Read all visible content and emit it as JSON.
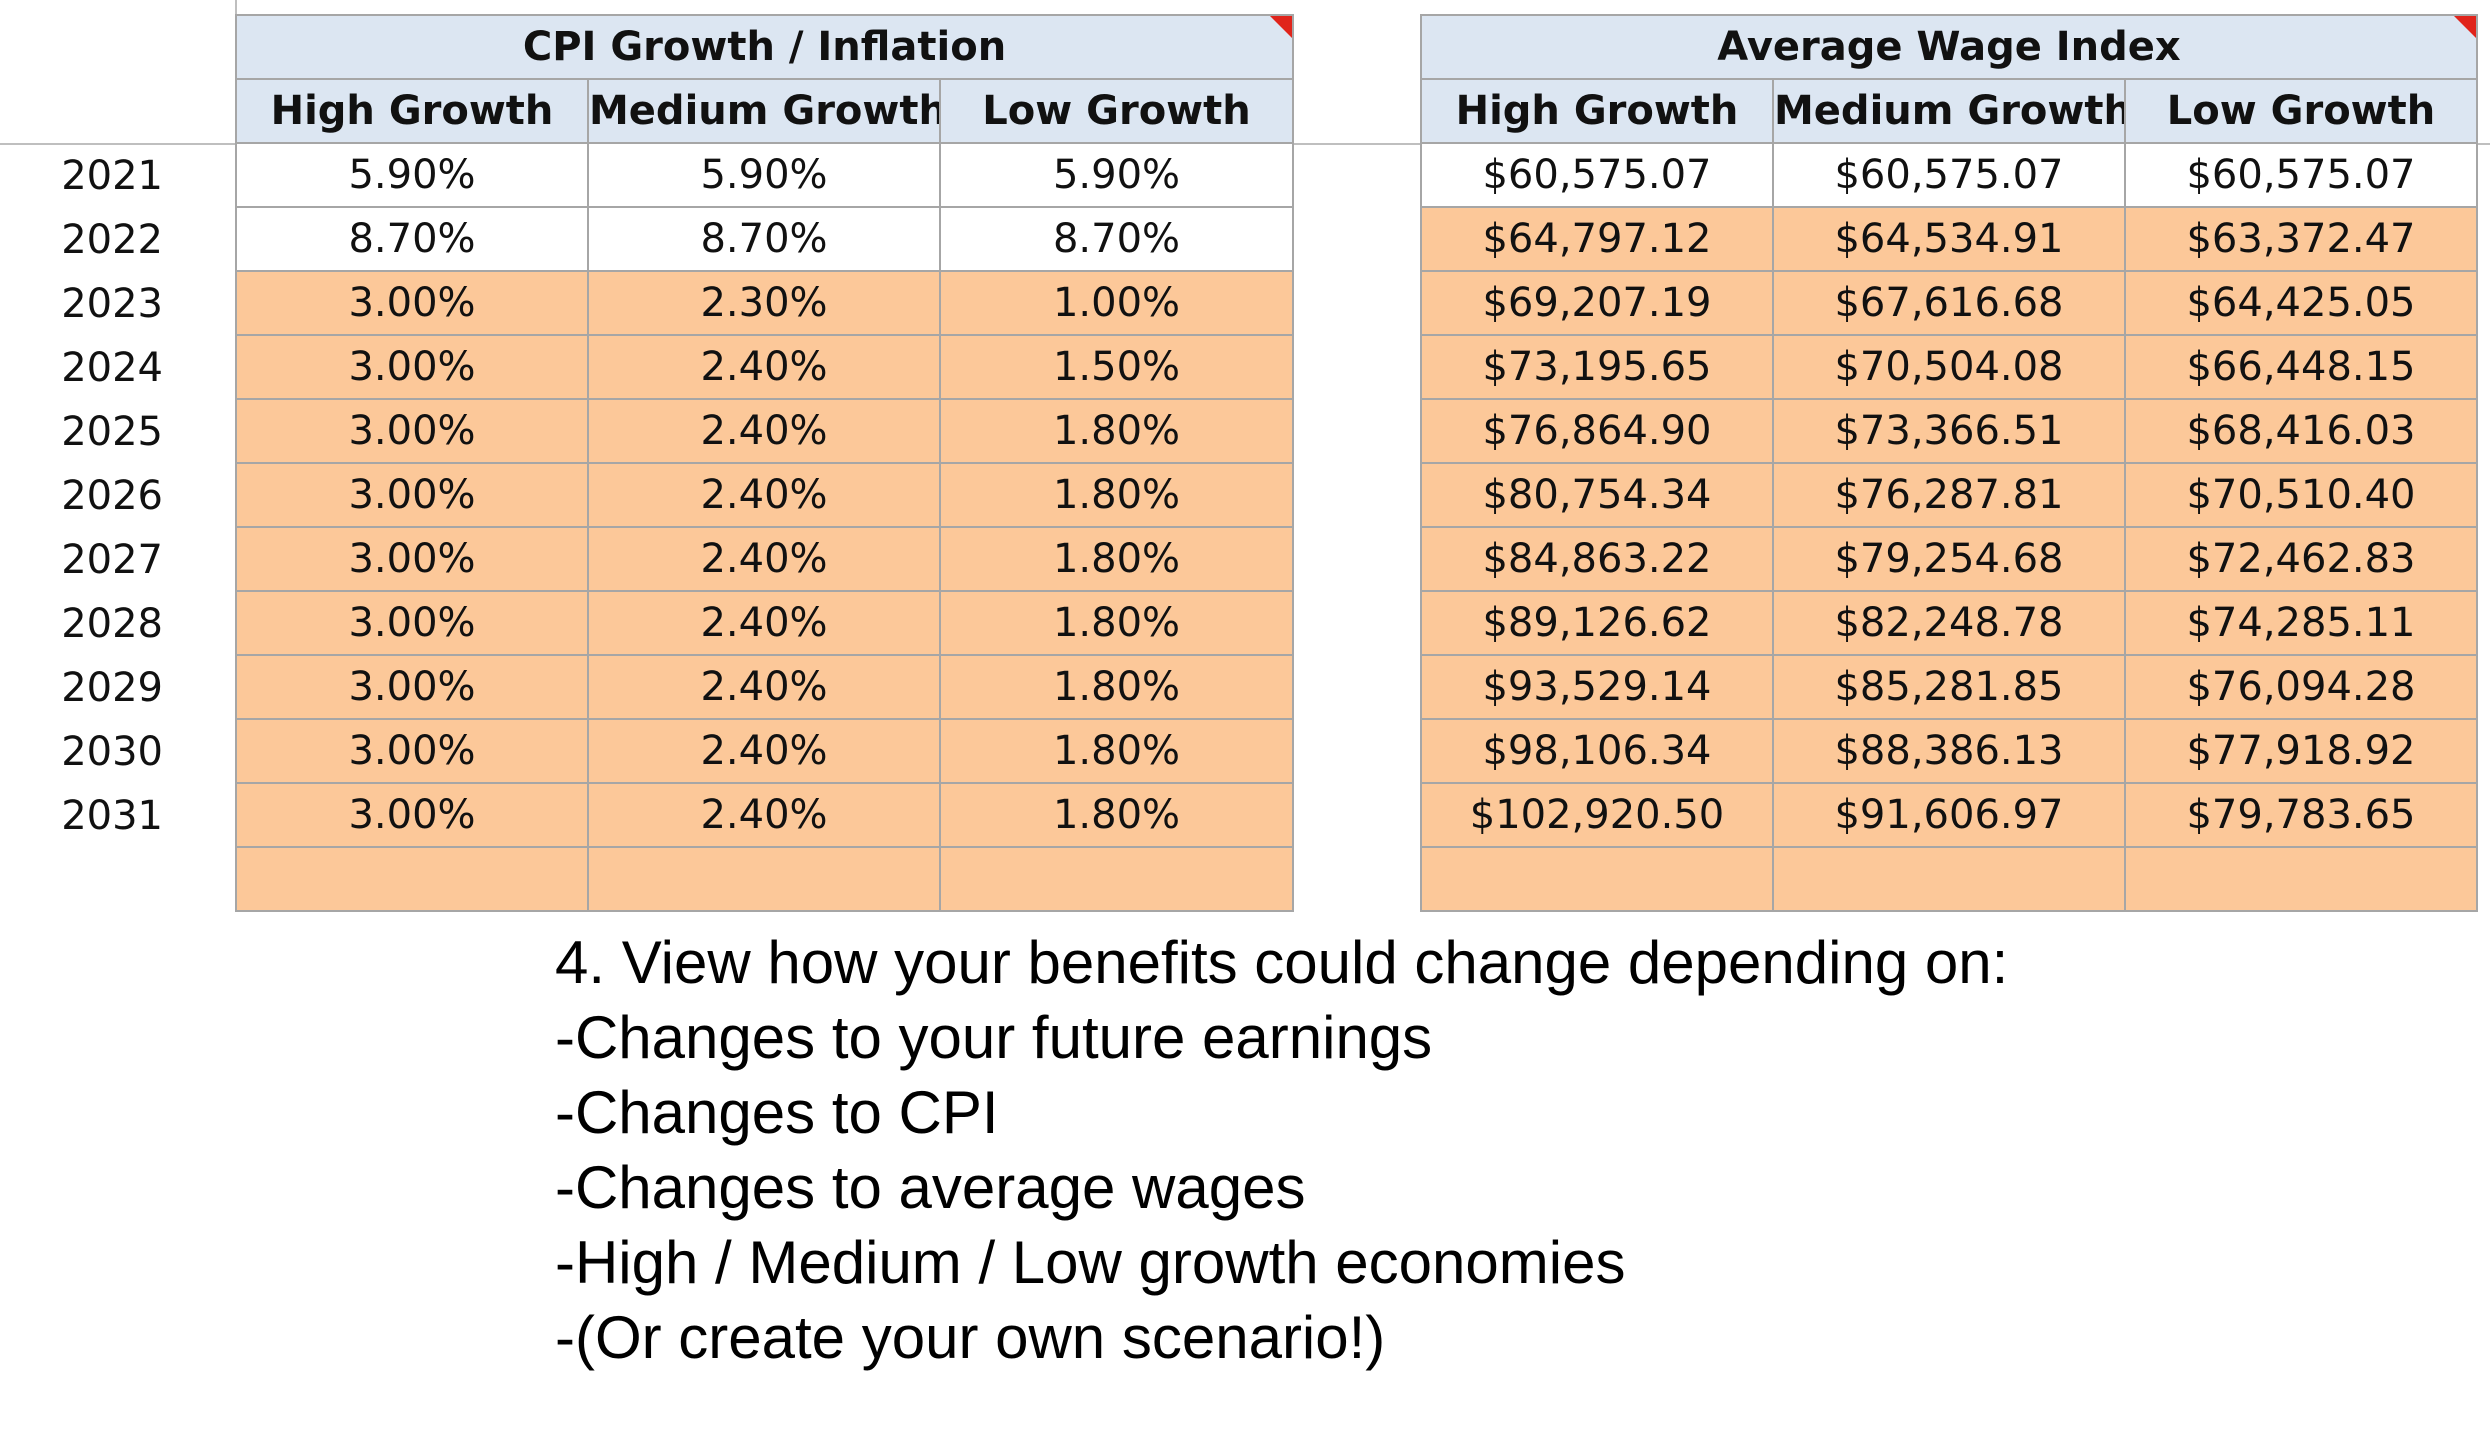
{
  "cpi": {
    "title": "CPI Growth / Inflation",
    "columns": [
      "High Growth",
      "Medium Growth",
      "Low Growth"
    ]
  },
  "awi": {
    "title": "Average Wage Index",
    "columns": [
      "High Growth",
      "Medium Growth",
      "Low Growth"
    ]
  },
  "years": [
    "2021",
    "2022",
    "2023",
    "2024",
    "2025",
    "2026",
    "2027",
    "2028",
    "2029",
    "2030",
    "2031"
  ],
  "cpi_rows": [
    {
      "fill": "white",
      "values": [
        "5.90%",
        "5.90%",
        "5.90%"
      ]
    },
    {
      "fill": "white",
      "values": [
        "8.70%",
        "8.70%",
        "8.70%"
      ]
    },
    {
      "fill": "orange",
      "values": [
        "3.00%",
        "2.30%",
        "1.00%"
      ]
    },
    {
      "fill": "orange",
      "values": [
        "3.00%",
        "2.40%",
        "1.50%"
      ]
    },
    {
      "fill": "orange",
      "values": [
        "3.00%",
        "2.40%",
        "1.80%"
      ]
    },
    {
      "fill": "orange",
      "values": [
        "3.00%",
        "2.40%",
        "1.80%"
      ]
    },
    {
      "fill": "orange",
      "values": [
        "3.00%",
        "2.40%",
        "1.80%"
      ]
    },
    {
      "fill": "orange",
      "values": [
        "3.00%",
        "2.40%",
        "1.80%"
      ]
    },
    {
      "fill": "orange",
      "values": [
        "3.00%",
        "2.40%",
        "1.80%"
      ]
    },
    {
      "fill": "orange",
      "values": [
        "3.00%",
        "2.40%",
        "1.80%"
      ]
    },
    {
      "fill": "orange",
      "values": [
        "3.00%",
        "2.40%",
        "1.80%"
      ]
    }
  ],
  "awi_rows": [
    {
      "fill": "white",
      "values": [
        "$60,575.07",
        "$60,575.07",
        "$60,575.07"
      ]
    },
    {
      "fill": "orange",
      "values": [
        "$64,797.12",
        "$64,534.91",
        "$63,372.47"
      ]
    },
    {
      "fill": "orange",
      "values": [
        "$69,207.19",
        "$67,616.68",
        "$64,425.05"
      ]
    },
    {
      "fill": "orange",
      "values": [
        "$73,195.65",
        "$70,504.08",
        "$66,448.15"
      ]
    },
    {
      "fill": "orange",
      "values": [
        "$76,864.90",
        "$73,366.51",
        "$68,416.03"
      ]
    },
    {
      "fill": "orange",
      "values": [
        "$80,754.34",
        "$76,287.81",
        "$70,510.40"
      ]
    },
    {
      "fill": "orange",
      "values": [
        "$84,863.22",
        "$79,254.68",
        "$72,462.83"
      ]
    },
    {
      "fill": "orange",
      "values": [
        "$89,126.62",
        "$82,248.78",
        "$74,285.11"
      ]
    },
    {
      "fill": "orange",
      "values": [
        "$93,529.14",
        "$85,281.85",
        "$76,094.28"
      ]
    },
    {
      "fill": "orange",
      "values": [
        "$98,106.34",
        "$88,386.13",
        "$77,918.92"
      ]
    },
    {
      "fill": "orange",
      "values": [
        "$102,920.50",
        "$91,606.97",
        "$79,783.65"
      ]
    }
  ],
  "notes": [
    "4. View how your benefits could change depending on:",
    "-Changes to your future earnings",
    "-Changes to CPI",
    "-Changes to average wages",
    "-High / Medium / Low growth economies",
    "-(Or create your own scenario!)"
  ],
  "colors": {
    "header_fill": "#dce6f2",
    "input_fill": "#fcc899",
    "grid_border": "#a6a6a6",
    "comment_marker": "#e0241b"
  }
}
